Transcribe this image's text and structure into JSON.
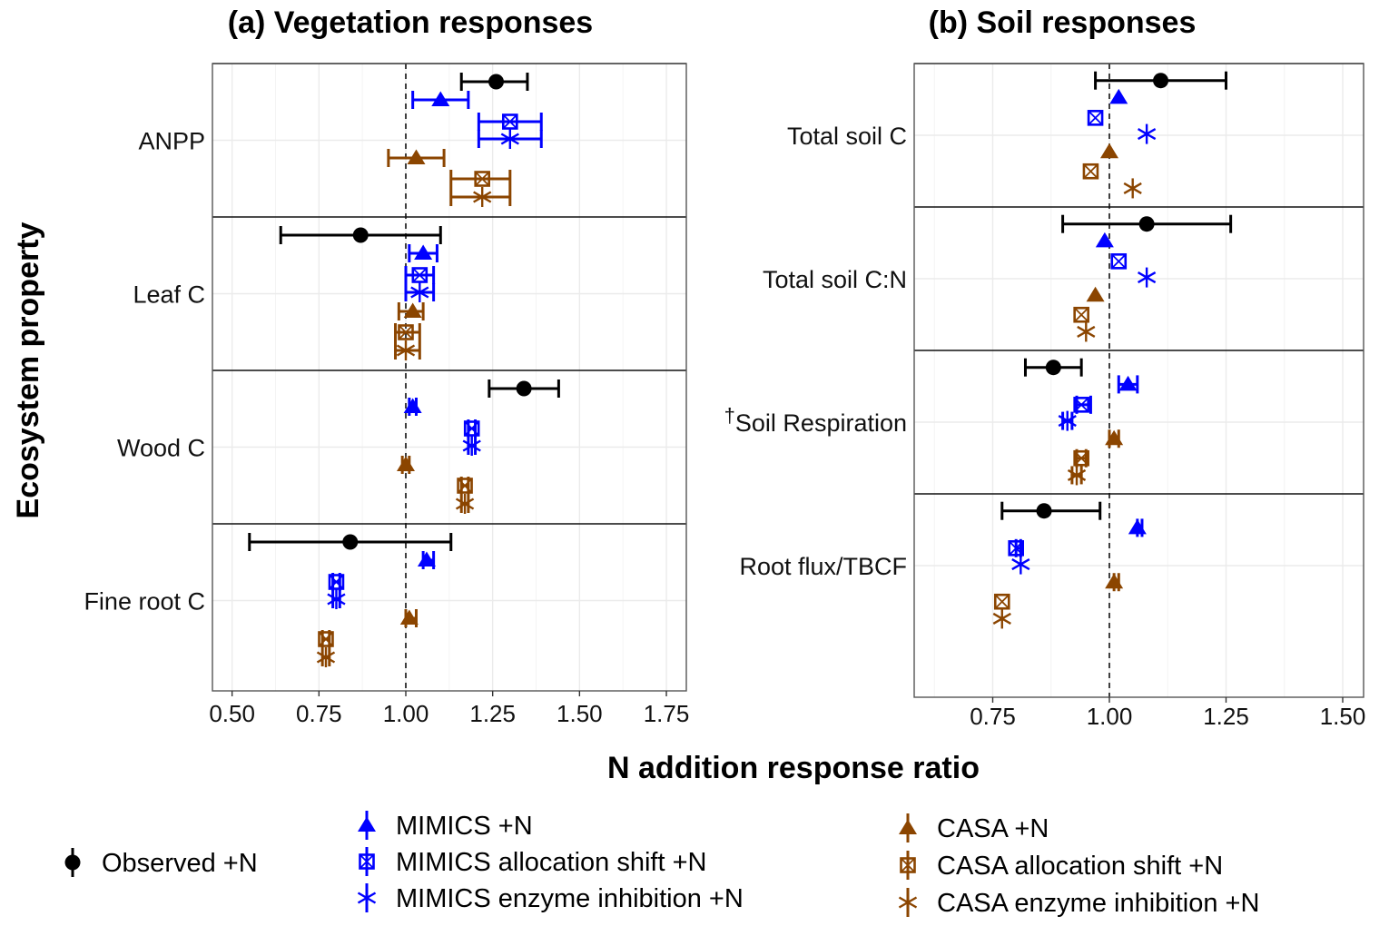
{
  "chart_data": {
    "type": "scatter",
    "subtype": "dot-and-whisker (forest plot)",
    "ylabel": "Ecosystem property",
    "xlabel": "N addition response ratio",
    "reference_line": {
      "x": 1.0,
      "style": "dashed"
    },
    "grid": true,
    "legend_position": "bottom",
    "series": [
      {
        "key": "obs",
        "name": "Observed +N",
        "color": "#000000",
        "marker": "circle"
      },
      {
        "key": "mim",
        "name": "MIMICS +N",
        "color": "#0000FF",
        "marker": "triangle"
      },
      {
        "key": "mim_alloc",
        "name": "MIMICS allocation shift +N",
        "color": "#0000FF",
        "marker": "boxed-x"
      },
      {
        "key": "mim_enz",
        "name": "MIMICS enzyme inhibition +N",
        "color": "#0000FF",
        "marker": "asterisk"
      },
      {
        "key": "casa",
        "name": "CASA +N",
        "color": "#8B4500",
        "marker": "triangle"
      },
      {
        "key": "casa_alloc",
        "name": "CASA allocation shift +N",
        "color": "#8B4500",
        "marker": "boxed-x"
      },
      {
        "key": "casa_enz",
        "name": "CASA enzyme inhibition +N",
        "color": "#8B4500",
        "marker": "asterisk"
      }
    ],
    "panels": [
      {
        "title": "(a) Vegetation responses",
        "xlim": [
          0.44,
          1.8
        ],
        "xticks": [
          0.5,
          0.75,
          1.0,
          1.25,
          1.5,
          1.75
        ],
        "xtick_labels": [
          "0.50",
          "0.75",
          "1.00",
          "1.25",
          "1.50",
          "1.75"
        ],
        "categories": [
          {
            "label": "ANPP",
            "dagger": false,
            "points": [
              {
                "series": "obs",
                "x": 1.26,
                "lo": 1.16,
                "hi": 1.35
              },
              {
                "series": "mim",
                "x": 1.1,
                "lo": 1.02,
                "hi": 1.18
              },
              {
                "series": "mim_alloc",
                "x": 1.3,
                "lo": 1.21,
                "hi": 1.39
              },
              {
                "series": "mim_enz",
                "x": 1.3,
                "lo": 1.21,
                "hi": 1.39
              },
              {
                "series": "casa",
                "x": 1.03,
                "lo": 0.95,
                "hi": 1.11
              },
              {
                "series": "casa_alloc",
                "x": 1.22,
                "lo": 1.13,
                "hi": 1.3
              },
              {
                "series": "casa_enz",
                "x": 1.22,
                "lo": 1.13,
                "hi": 1.3
              }
            ]
          },
          {
            "label": "Leaf C",
            "dagger": false,
            "points": [
              {
                "series": "obs",
                "x": 0.87,
                "lo": 0.64,
                "hi": 1.1
              },
              {
                "series": "mim",
                "x": 1.05,
                "lo": 1.01,
                "hi": 1.09
              },
              {
                "series": "mim_alloc",
                "x": 1.04,
                "lo": 1.0,
                "hi": 1.08
              },
              {
                "series": "mim_enz",
                "x": 1.04,
                "lo": 1.0,
                "hi": 1.08
              },
              {
                "series": "casa",
                "x": 1.02,
                "lo": 0.98,
                "hi": 1.05
              },
              {
                "series": "casa_alloc",
                "x": 1.0,
                "lo": 0.97,
                "hi": 1.04
              },
              {
                "series": "casa_enz",
                "x": 1.0,
                "lo": 0.97,
                "hi": 1.04
              }
            ]
          },
          {
            "label": "Wood C",
            "dagger": false,
            "points": [
              {
                "series": "obs",
                "x": 1.34,
                "lo": 1.24,
                "hi": 1.44
              },
              {
                "series": "mim",
                "x": 1.02,
                "lo": 1.01,
                "hi": 1.03
              },
              {
                "series": "mim_alloc",
                "x": 1.19,
                "lo": 1.18,
                "hi": 1.2
              },
              {
                "series": "mim_enz",
                "x": 1.19,
                "lo": 1.18,
                "hi": 1.2
              },
              {
                "series": "casa",
                "x": 1.0,
                "lo": 0.99,
                "hi": 1.01
              },
              {
                "series": "casa_alloc",
                "x": 1.17,
                "lo": 1.16,
                "hi": 1.18
              },
              {
                "series": "casa_enz",
                "x": 1.17,
                "lo": 1.16,
                "hi": 1.18
              }
            ]
          },
          {
            "label": "Fine root C",
            "dagger": false,
            "points": [
              {
                "series": "obs",
                "x": 0.84,
                "lo": 0.55,
                "hi": 1.13
              },
              {
                "series": "mim",
                "x": 1.06,
                "lo": 1.05,
                "hi": 1.08
              },
              {
                "series": "mim_alloc",
                "x": 0.8,
                "lo": 0.79,
                "hi": 0.81
              },
              {
                "series": "mim_enz",
                "x": 0.8,
                "lo": 0.79,
                "hi": 0.81
              },
              {
                "series": "casa",
                "x": 1.01,
                "lo": 1.0,
                "hi": 1.03
              },
              {
                "series": "casa_alloc",
                "x": 0.77,
                "lo": 0.76,
                "hi": 0.78
              },
              {
                "series": "casa_enz",
                "x": 0.77,
                "lo": 0.76,
                "hi": 0.78
              }
            ]
          }
        ]
      },
      {
        "title": "(b) Soil responses",
        "xlim": [
          0.57,
          1.54
        ],
        "xticks": [
          0.75,
          1.0,
          1.25,
          1.5
        ],
        "xtick_labels": [
          "0.75",
          "1.00",
          "1.25",
          "1.50"
        ],
        "categories": [
          {
            "label": "Total soil C",
            "dagger": false,
            "points": [
              {
                "series": "obs",
                "x": 1.11,
                "lo": 0.97,
                "hi": 1.25
              },
              {
                "series": "mim",
                "x": 1.02,
                "lo": 1.02,
                "hi": 1.02
              },
              {
                "series": "mim_alloc",
                "x": 0.97,
                "lo": 0.97,
                "hi": 0.97
              },
              {
                "series": "mim_enz",
                "x": 1.08,
                "lo": 1.08,
                "hi": 1.08
              },
              {
                "series": "casa",
                "x": 1.0,
                "lo": 1.0,
                "hi": 1.0
              },
              {
                "series": "casa_alloc",
                "x": 0.96,
                "lo": 0.96,
                "hi": 0.96
              },
              {
                "series": "casa_enz",
                "x": 1.05,
                "lo": 1.05,
                "hi": 1.05
              }
            ]
          },
          {
            "label": "Total soil C:N",
            "dagger": false,
            "points": [
              {
                "series": "obs",
                "x": 1.08,
                "lo": 0.9,
                "hi": 1.26
              },
              {
                "series": "mim",
                "x": 0.99,
                "lo": 0.99,
                "hi": 0.99
              },
              {
                "series": "mim_alloc",
                "x": 1.02,
                "lo": 1.02,
                "hi": 1.02
              },
              {
                "series": "mim_enz",
                "x": 1.08,
                "lo": 1.08,
                "hi": 1.08
              },
              {
                "series": "casa",
                "x": 0.97,
                "lo": 0.97,
                "hi": 0.97
              },
              {
                "series": "casa_alloc",
                "x": 0.94,
                "lo": 0.94,
                "hi": 0.94
              },
              {
                "series": "casa_enz",
                "x": 0.95,
                "lo": 0.95,
                "hi": 0.95
              }
            ]
          },
          {
            "label": "Soil Respiration",
            "dagger": true,
            "points": [
              {
                "series": "obs",
                "x": 0.88,
                "lo": 0.82,
                "hi": 0.94
              },
              {
                "series": "mim",
                "x": 1.04,
                "lo": 1.02,
                "hi": 1.06
              },
              {
                "series": "mim_alloc",
                "x": 0.94,
                "lo": 0.93,
                "hi": 0.96
              },
              {
                "series": "mim_enz",
                "x": 0.91,
                "lo": 0.9,
                "hi": 0.92
              },
              {
                "series": "casa",
                "x": 1.01,
                "lo": 1.0,
                "hi": 1.02
              },
              {
                "series": "casa_alloc",
                "x": 0.94,
                "lo": 0.93,
                "hi": 0.95
              },
              {
                "series": "casa_enz",
                "x": 0.93,
                "lo": 0.92,
                "hi": 0.94
              }
            ]
          },
          {
            "label": "Root flux/TBCF",
            "dagger": false,
            "points": [
              {
                "series": "obs",
                "x": 0.86,
                "lo": 0.77,
                "hi": 0.98
              },
              {
                "series": "mim",
                "x": 1.06,
                "lo": 1.06,
                "hi": 1.07
              },
              {
                "series": "mim_alloc",
                "x": 0.8,
                "lo": 0.8,
                "hi": 0.81
              },
              {
                "series": "mim_enz",
                "x": 0.81,
                "lo": 0.81,
                "hi": 0.81
              },
              {
                "series": "casa",
                "x": 1.01,
                "lo": 1.01,
                "hi": 1.02
              },
              {
                "series": "casa_alloc",
                "x": 0.77,
                "lo": 0.77,
                "hi": 0.77
              },
              {
                "series": "casa_enz",
                "x": 0.77,
                "lo": 0.77,
                "hi": 0.77
              }
            ]
          }
        ]
      }
    ]
  },
  "legend": {
    "dagger_symbol": "†",
    "groups": [
      [
        "Observed +N"
      ],
      [
        "MIMICS +N",
        "MIMICS allocation shift +N",
        "MIMICS enzyme inhibition +N"
      ],
      [
        "CASA +N",
        "CASA allocation shift +N",
        "CASA enzyme inhibition +N"
      ]
    ]
  }
}
